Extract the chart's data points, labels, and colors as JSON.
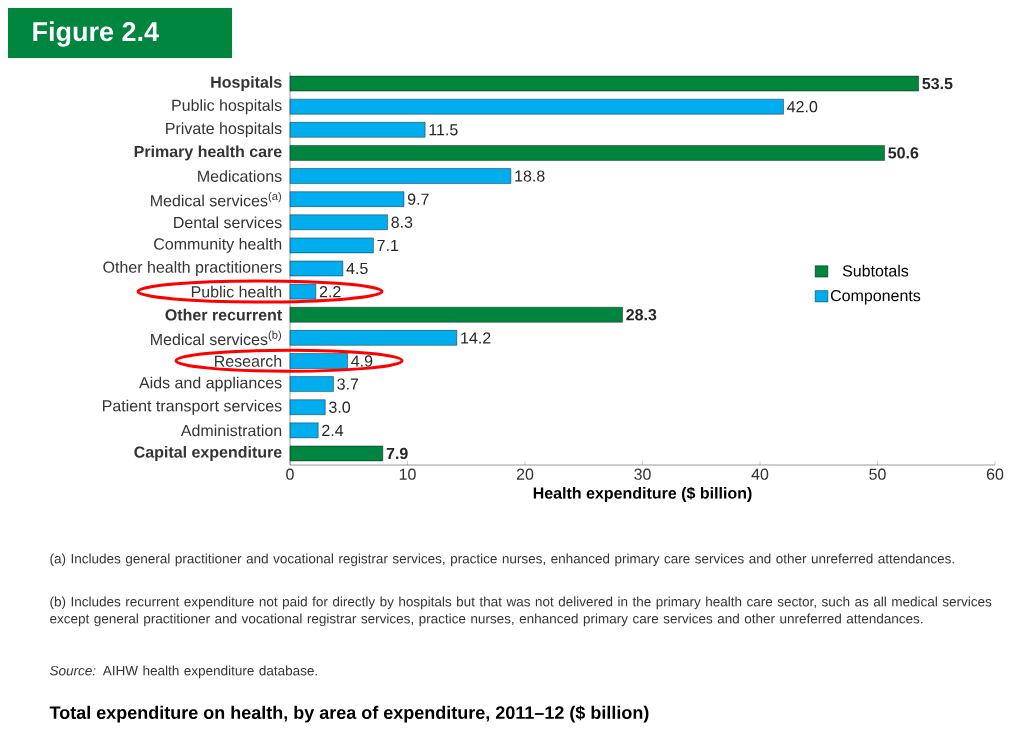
{
  "chart_data": {
    "type": "bar",
    "orientation": "horizontal",
    "title": "Total expenditure on health, by area of expenditure, 2011–12 ($ billion)",
    "xlabel": "Health expenditure ($ billion)",
    "categories": [
      "Hospitals",
      "Public hospitals",
      "Private hospitals",
      "Primary health care",
      "Medications",
      "Medical services$^{(a)}$",
      "Dental services",
      "Community health",
      "Other health practitioners",
      "Public health",
      "Other recurrent",
      "Medical services$^{(b)}$",
      "Research",
      "Aids and appliances",
      "Patient transport services",
      "Administration",
      "Capital expenditure"
    ],
    "series": [
      {
        "name": "Subtotals",
        "color": "#00853f",
        "values": [
          53.5,
          null,
          null,
          50.6,
          null,
          null,
          null,
          null,
          null,
          null,
          28.3,
          null,
          null,
          null,
          null,
          null,
          7.9
        ],
        "value_labels": [
          "53.5",
          null,
          null,
          "50.6",
          null,
          null,
          null,
          null,
          null,
          null,
          "28.3",
          null,
          null,
          null,
          null,
          null,
          "7.9"
        ]
      },
      {
        "name": "Components",
        "color": "#00aeef",
        "values": [
          null,
          42.0,
          11.5,
          null,
          18.8,
          9.7,
          8.3,
          7.1,
          4.5,
          2.2,
          null,
          14.2,
          4.9,
          3.7,
          3.0,
          2.4,
          null
        ],
        "value_labels": [
          null,
          "42.0",
          "11.5",
          null,
          "18.8",
          "9.7",
          "8.3",
          "7.1",
          "4.5",
          "2.2",
          null,
          "14.2",
          "4.9",
          "3.7",
          "3.0",
          "2.4",
          null
        ]
      }
    ],
    "xlim": [
      0,
      60
    ],
    "xticks": [
      0,
      10,
      20,
      30,
      40,
      50,
      60
    ],
    "legend": "right",
    "grid": false,
    "annotations": [
      "Figure 2.4",
      "(a) Includes general practitioner and vocational registrar services, practice nurses, enhanced primary care services and other unreferred attendances.",
      "(b) Includes recurrent expenditure not paid for directly by hospitals but that was not delivered in the primary health care sector, such as all medical services except general practitioner and vocational registrar services, practice nurses, enhanced primary care services and other unreferred attendances.",
      "*Source:* AIHW health expenditure database."
    ]
  }
}
